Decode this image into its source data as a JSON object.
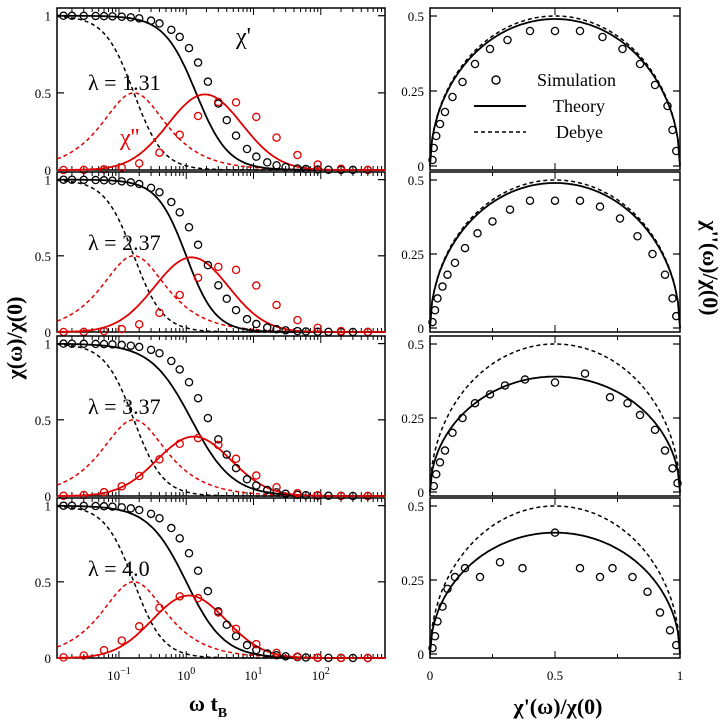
{
  "figure": {
    "left_xlabel": "ω t",
    "left_xlabel_sub": "B",
    "left_ylabel": "χ(ω)/χ(0)",
    "right_xlabel": "χ'(ω)/χ(0)",
    "right_ylabel": "χ''(ω)/χ(0)",
    "legend": {
      "simulation": "Simulation",
      "theory": "Theory",
      "debye": "Debye"
    },
    "curve_labels": {
      "real": "χ'",
      "imag": "χ''"
    },
    "colors": {
      "real": "#000000",
      "imag": "#e00000"
    }
  },
  "chart_data": [
    {
      "type": "line",
      "panel": "left-row-1",
      "label": "λ = 1.31",
      "xscale": "log",
      "xlim": [
        0.012,
        900
      ],
      "ylim": [
        0,
        1.05
      ],
      "xticks": [
        "10^-1",
        "10^0",
        "10^1",
        "10^2"
      ],
      "yticks": [
        "0",
        "0.5",
        "1"
      ],
      "debye_tau": 1,
      "theory": {
        "real_x50": 1.4,
        "real_width": 1.1,
        "imag_peak_x": 1.9,
        "imag_peak_y": 0.49
      },
      "simulation": {
        "real_x": [
          0.015,
          0.02,
          0.03,
          0.045,
          0.06,
          0.08,
          0.11,
          0.15,
          0.2,
          0.3,
          0.4,
          0.6,
          0.8,
          1.1,
          1.5,
          2.1,
          3,
          4,
          5.5,
          8,
          11,
          16,
          22,
          30,
          45,
          60,
          90,
          130,
          200,
          300,
          500
        ],
        "imag_peak_x": 4.0,
        "imag_peak_y": 0.45
      }
    },
    {
      "type": "line",
      "panel": "left-row-2",
      "label": "λ = 2.37",
      "xscale": "log",
      "xlim": [
        0.012,
        900
      ],
      "ylim": [
        0,
        1.05
      ],
      "xticks": [
        "10^-1",
        "10^0",
        "10^1",
        "10^2"
      ],
      "yticks": [
        "0",
        "0.5",
        "1"
      ],
      "debye_tau": 1,
      "theory": {
        "real_x50": 1.0,
        "real_width": 1.0,
        "imag_peak_x": 1.2,
        "imag_peak_y": 0.49
      },
      "simulation": {
        "real_x": [
          0.015,
          0.02,
          0.03,
          0.045,
          0.06,
          0.08,
          0.11,
          0.15,
          0.2,
          0.3,
          0.4,
          0.6,
          0.8,
          1.1,
          1.5,
          2.1,
          3,
          4,
          5.5,
          8,
          11,
          16,
          22,
          30,
          45,
          60,
          90,
          130,
          200,
          300,
          500
        ],
        "imag_peak_x": 3.5,
        "imag_peak_y": 0.43
      }
    },
    {
      "type": "line",
      "panel": "left-row-3",
      "label": "λ = 3.37",
      "xscale": "log",
      "xlim": [
        0.012,
        900
      ],
      "ylim": [
        0,
        1.05
      ],
      "xticks": [
        "10^-1",
        "10^0",
        "10^1",
        "10^2"
      ],
      "yticks": [
        "0",
        "0.5",
        "1"
      ],
      "debye_tau": 1,
      "theory": {
        "real_x50": 1.2,
        "real_width": 1.4,
        "imag_peak_x": 1.3,
        "imag_peak_y": 0.39
      },
      "simulation": {
        "real_x": [
          0.015,
          0.02,
          0.03,
          0.045,
          0.06,
          0.08,
          0.11,
          0.15,
          0.2,
          0.3,
          0.4,
          0.6,
          0.8,
          1.1,
          1.5,
          2.1,
          3,
          4,
          5.5,
          8,
          11,
          16,
          22,
          30,
          45,
          60,
          90,
          130,
          200,
          300,
          500
        ],
        "imag_peak_x": 1.5,
        "imag_peak_y": 0.38
      }
    },
    {
      "type": "line",
      "panel": "left-row-4",
      "label": "λ = 4.0",
      "xscale": "log",
      "xlim": [
        0.012,
        900
      ],
      "ylim": [
        0,
        1.05
      ],
      "xticks": [
        "10^-1",
        "10^0",
        "10^1",
        "10^2"
      ],
      "yticks": [
        "0",
        "0.5",
        "1"
      ],
      "debye_tau": 1,
      "theory": {
        "real_x50": 1.0,
        "real_width": 1.3,
        "imag_peak_x": 1.1,
        "imag_peak_y": 0.41
      },
      "simulation": {
        "real_x": [
          0.015,
          0.02,
          0.03,
          0.045,
          0.06,
          0.08,
          0.11,
          0.15,
          0.2,
          0.3,
          0.4,
          0.6,
          0.8,
          1.1,
          1.5,
          2.1,
          3,
          4,
          5.5,
          8,
          11,
          16,
          22,
          30,
          45,
          60,
          90,
          130,
          200,
          300,
          500
        ],
        "imag_peak_x": 1.0,
        "imag_peak_y": 0.41
      }
    },
    {
      "type": "scatter",
      "panel": "right-row-1",
      "xlim": [
        0,
        1
      ],
      "ylim": [
        0,
        0.5
      ],
      "xticks": [
        "0",
        "0.5",
        "1"
      ],
      "yticks": [
        "0",
        "0.25",
        "0.5"
      ],
      "theory_arc_height": 0.49,
      "debye_arc_height": 0.5,
      "simulation_points": [
        [
          0.01,
          0.02
        ],
        [
          0.015,
          0.06
        ],
        [
          0.025,
          0.1
        ],
        [
          0.04,
          0.14
        ],
        [
          0.06,
          0.18
        ],
        [
          0.09,
          0.23
        ],
        [
          0.13,
          0.28
        ],
        [
          0.18,
          0.34
        ],
        [
          0.24,
          0.39
        ],
        [
          0.31,
          0.42
        ],
        [
          0.4,
          0.45
        ],
        [
          0.5,
          0.45
        ],
        [
          0.6,
          0.45
        ],
        [
          0.69,
          0.43
        ],
        [
          0.77,
          0.39
        ],
        [
          0.84,
          0.34
        ],
        [
          0.9,
          0.27
        ],
        [
          0.95,
          0.2
        ],
        [
          0.97,
          0.12
        ],
        [
          0.985,
          0.05
        ]
      ]
    },
    {
      "type": "scatter",
      "panel": "right-row-2",
      "xlim": [
        0,
        1
      ],
      "ylim": [
        0,
        0.5
      ],
      "xticks": [
        "0",
        "0.5",
        "1"
      ],
      "yticks": [
        "0",
        "0.25",
        "0.5"
      ],
      "theory_arc_height": 0.49,
      "debye_arc_height": 0.5,
      "simulation_points": [
        [
          0.01,
          0.02
        ],
        [
          0.02,
          0.06
        ],
        [
          0.03,
          0.1
        ],
        [
          0.05,
          0.14
        ],
        [
          0.07,
          0.18
        ],
        [
          0.1,
          0.22
        ],
        [
          0.14,
          0.27
        ],
        [
          0.19,
          0.32
        ],
        [
          0.25,
          0.36
        ],
        [
          0.32,
          0.4
        ],
        [
          0.4,
          0.43
        ],
        [
          0.5,
          0.43
        ],
        [
          0.6,
          0.43
        ],
        [
          0.68,
          0.41
        ],
        [
          0.76,
          0.37
        ],
        [
          0.83,
          0.31
        ],
        [
          0.89,
          0.25
        ],
        [
          0.94,
          0.18
        ],
        [
          0.97,
          0.1
        ],
        [
          0.985,
          0.04
        ]
      ]
    },
    {
      "type": "scatter",
      "panel": "right-row-3",
      "xlim": [
        0,
        1
      ],
      "ylim": [
        0,
        0.5
      ],
      "xticks": [
        "0",
        "0.5",
        "1"
      ],
      "yticks": [
        "0",
        "0.25",
        "0.5"
      ],
      "theory_arc_height": 0.39,
      "debye_arc_height": 0.5,
      "simulation_points": [
        [
          0.015,
          0.02
        ],
        [
          0.025,
          0.06
        ],
        [
          0.04,
          0.1
        ],
        [
          0.06,
          0.14
        ],
        [
          0.09,
          0.2
        ],
        [
          0.13,
          0.25
        ],
        [
          0.18,
          0.3
        ],
        [
          0.24,
          0.33
        ],
        [
          0.3,
          0.36
        ],
        [
          0.38,
          0.38
        ],
        [
          0.5,
          0.37
        ],
        [
          0.62,
          0.4
        ],
        [
          0.72,
          0.32
        ],
        [
          0.79,
          0.3
        ],
        [
          0.84,
          0.26
        ],
        [
          0.9,
          0.21
        ],
        [
          0.94,
          0.14
        ],
        [
          0.97,
          0.08
        ],
        [
          0.99,
          0.03
        ]
      ]
    },
    {
      "type": "scatter",
      "panel": "right-row-4",
      "xlim": [
        0,
        1
      ],
      "ylim": [
        0,
        0.5
      ],
      "xticks": [
        "0",
        "0.5",
        "1"
      ],
      "yticks": [
        "0",
        "0.25",
        "0.5"
      ],
      "theory_arc_height": 0.41,
      "debye_arc_height": 0.5,
      "simulation_points": [
        [
          0.01,
          0.02
        ],
        [
          0.02,
          0.06
        ],
        [
          0.03,
          0.11
        ],
        [
          0.05,
          0.16
        ],
        [
          0.07,
          0.22
        ],
        [
          0.1,
          0.26
        ],
        [
          0.14,
          0.29
        ],
        [
          0.2,
          0.26
        ],
        [
          0.28,
          0.31
        ],
        [
          0.37,
          0.29
        ],
        [
          0.5,
          0.41
        ],
        [
          0.6,
          0.29
        ],
        [
          0.68,
          0.26
        ],
        [
          0.73,
          0.29
        ],
        [
          0.81,
          0.26
        ],
        [
          0.87,
          0.21
        ],
        [
          0.92,
          0.14
        ],
        [
          0.96,
          0.08
        ],
        [
          0.985,
          0.03
        ]
      ]
    }
  ]
}
